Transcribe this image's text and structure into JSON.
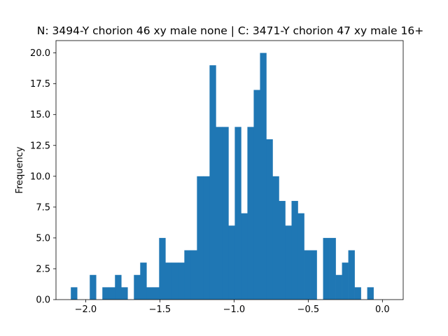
{
  "chart_data": {
    "type": "bar",
    "subtype": "histogram",
    "title": "N: 3494-Y chorion 46 xy male none | C: 3471-Y chorion 47 xy male 16+",
    "xlabel": "",
    "ylabel": "Frequency",
    "xlim": [
      -2.2,
      0.14
    ],
    "ylim": [
      0,
      21
    ],
    "xticks": [
      -2.0,
      -1.5,
      -1.0,
      -0.5,
      0.0
    ],
    "xtick_labels": [
      "−2.0",
      "−1.5",
      "−1.0",
      "−0.5",
      "0.0"
    ],
    "yticks": [
      0,
      2.5,
      5,
      7.5,
      10,
      12.5,
      15,
      17.5,
      20
    ],
    "ytick_labels": [
      "0.0",
      "2.5",
      "5.0",
      "7.5",
      "10.0",
      "12.5",
      "15.0",
      "17.5",
      "20.0"
    ],
    "bin_start": -2.1,
    "bin_width": 0.0425,
    "values": [
      1,
      0,
      0,
      2,
      0,
      1,
      1,
      2,
      1,
      0,
      2,
      3,
      1,
      1,
      5,
      3,
      3,
      3,
      4,
      4,
      10,
      10,
      19,
      14,
      14,
      6,
      14,
      7,
      14,
      17,
      20,
      13,
      10,
      8,
      6,
      8,
      7,
      4,
      4,
      0,
      5,
      5,
      2,
      3,
      4,
      1,
      0,
      1
    ],
    "bar_color": "#1f77b4",
    "grid": false,
    "legend": "none"
  }
}
